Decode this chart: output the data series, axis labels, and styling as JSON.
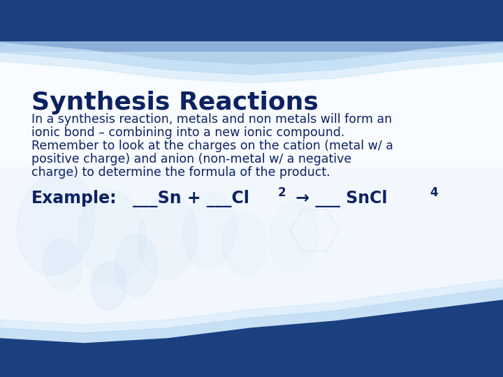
{
  "title": "Synthesis Reactions",
  "title_color": "#0d2260",
  "title_fontsize": 26,
  "body_text_lines": [
    "In a synthesis reaction, metals and non metals will form an",
    "ionic bond – combining into a new ionic compound.",
    "Remember to look at the charges on the cation (metal w/ a",
    "positive charge) and anion (non-metal w/ a negative",
    "charge) to determine the formula of the product."
  ],
  "body_color": "#0d2260",
  "body_fontsize": 12.5,
  "example_label": "Example:",
  "example_color": "#0d2260",
  "example_fontsize": 17,
  "bg_color": "#f0f6ff",
  "dark_blue": "#1a4080",
  "light_blue": "#aaccee",
  "lighter_blue": "#d0e8f8",
  "figure_width": 7.2,
  "figure_height": 5.4,
  "dpi": 100
}
